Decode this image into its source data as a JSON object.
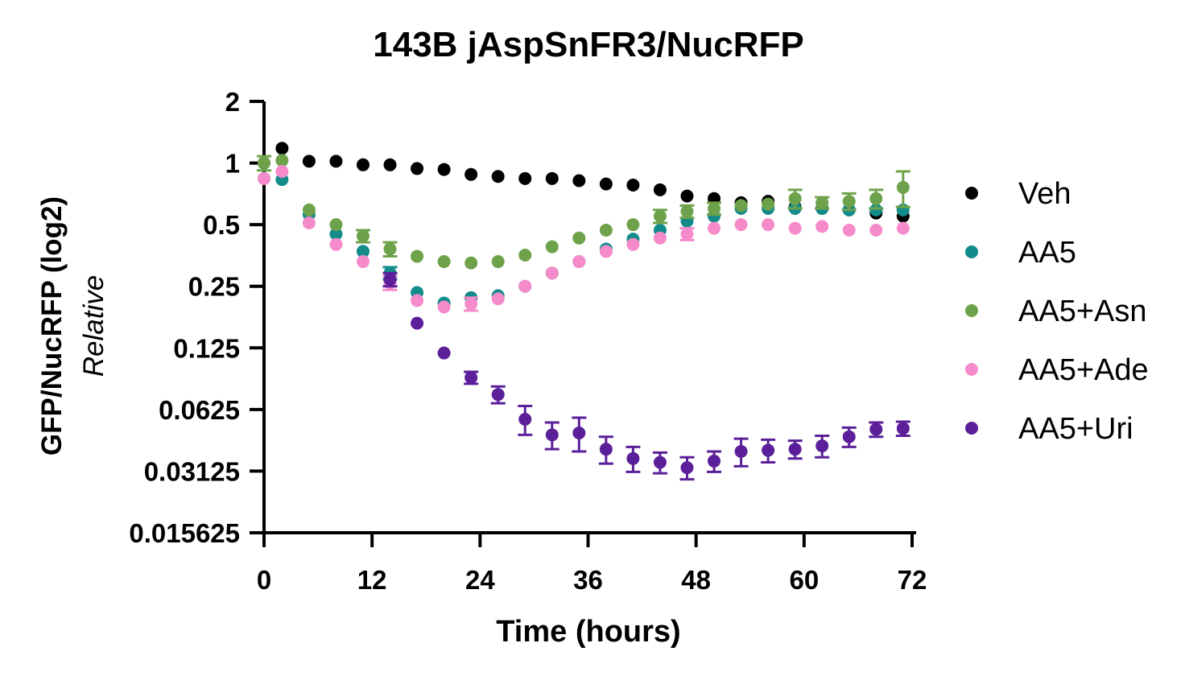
{
  "chart_data": {
    "type": "scatter",
    "title": "143B jAspSnFR3/NucRFP",
    "xlabel": "Time (hours)",
    "ylabel_main": "GFP/NucRFP (log2)",
    "ylabel_sub": "Relative",
    "yscale": "log2",
    "xlim": [
      0,
      72
    ],
    "ylim": [
      0.015625,
      2
    ],
    "x_ticks": [
      0,
      12,
      24,
      36,
      48,
      60,
      72
    ],
    "x_tick_labels": [
      "0",
      "12",
      "24",
      "36",
      "48",
      "60",
      "72"
    ],
    "y_ticks": [
      2,
      1,
      0.5,
      0.25,
      0.125,
      0.0625,
      0.03125,
      0.015625
    ],
    "y_tick_labels": [
      "2",
      "1",
      "0.5",
      "0.25",
      "0.125",
      "0.0625",
      "0.03125",
      "0.015625"
    ],
    "legend_position": "right",
    "error_bars": true,
    "series": [
      {
        "name": "Veh",
        "color": "#000000",
        "x": [
          0,
          2,
          5,
          8,
          11,
          14,
          17,
          20,
          23,
          26,
          29,
          32,
          35,
          38,
          41,
          44,
          47,
          50,
          53,
          56,
          59,
          62,
          65,
          68,
          71
        ],
        "y": [
          1.0,
          1.18,
          1.02,
          1.02,
          0.98,
          0.98,
          0.94,
          0.93,
          0.88,
          0.86,
          0.84,
          0.84,
          0.82,
          0.79,
          0.78,
          0.74,
          0.69,
          0.67,
          0.64,
          0.65,
          0.61,
          0.6,
          0.59,
          0.57,
          0.55
        ],
        "err": [
          0.03,
          0.03,
          0.02,
          0.02,
          0.02,
          0.02,
          0.02,
          0.02,
          0.02,
          0.02,
          0.02,
          0.02,
          0.02,
          0.02,
          0.02,
          0.02,
          0.02,
          0.02,
          0.02,
          0.02,
          0.02,
          0.02,
          0.02,
          0.02,
          0.02
        ]
      },
      {
        "name": "AA5",
        "color": "#138b8b",
        "x": [
          0,
          2,
          5,
          8,
          11,
          14,
          17,
          20,
          23,
          26,
          29,
          32,
          35,
          38,
          41,
          44,
          47,
          50,
          53,
          56,
          59,
          62,
          65,
          68,
          71
        ],
        "y": [
          0.84,
          0.83,
          0.56,
          0.45,
          0.37,
          0.29,
          0.233,
          0.207,
          0.22,
          0.225,
          0.25,
          0.29,
          0.33,
          0.38,
          0.425,
          0.47,
          0.52,
          0.55,
          0.6,
          0.6,
          0.6,
          0.6,
          0.59,
          0.59,
          0.59
        ],
        "err": [
          0.03,
          0.03,
          0.02,
          0.02,
          0.02,
          0.02,
          0.01,
          0.01,
          0.01,
          0.01,
          0.01,
          0.01,
          0.01,
          0.02,
          0.02,
          0.02,
          0.02,
          0.02,
          0.03,
          0.03,
          0.03,
          0.03,
          0.03,
          0.03,
          0.03
        ]
      },
      {
        "name": "AA5+Asn",
        "color": "#6ea24a",
        "x": [
          0,
          2,
          5,
          8,
          11,
          14,
          17,
          20,
          23,
          26,
          29,
          32,
          35,
          38,
          41,
          44,
          47,
          50,
          53,
          56,
          59,
          62,
          65,
          68,
          71
        ],
        "y": [
          1.0,
          1.03,
          0.59,
          0.5,
          0.44,
          0.38,
          0.35,
          0.33,
          0.325,
          0.33,
          0.355,
          0.39,
          0.43,
          0.47,
          0.5,
          0.55,
          0.58,
          0.6,
          0.62,
          0.63,
          0.67,
          0.64,
          0.65,
          0.67,
          0.76
        ],
        "err": [
          0.08,
          0.04,
          0.02,
          0.02,
          0.03,
          0.03,
          0.02,
          0.02,
          0.01,
          0.01,
          0.01,
          0.01,
          0.01,
          0.02,
          0.02,
          0.04,
          0.04,
          0.04,
          0.03,
          0.03,
          0.07,
          0.04,
          0.06,
          0.07,
          0.15
        ]
      },
      {
        "name": "AA5+Ade",
        "color": "#f58bcb",
        "x": [
          0,
          2,
          5,
          8,
          11,
          14,
          17,
          20,
          23,
          26,
          29,
          32,
          35,
          38,
          41,
          44,
          47,
          50,
          53,
          56,
          59,
          62,
          65,
          68,
          71
        ],
        "y": [
          0.84,
          0.91,
          0.51,
          0.4,
          0.33,
          0.26,
          0.213,
          0.198,
          0.205,
          0.217,
          0.25,
          0.29,
          0.33,
          0.37,
          0.4,
          0.43,
          0.45,
          0.48,
          0.5,
          0.5,
          0.48,
          0.49,
          0.47,
          0.47,
          0.48
        ],
        "err": [
          0.03,
          0.03,
          0.02,
          0.02,
          0.02,
          0.02,
          0.01,
          0.01,
          0.015,
          0.01,
          0.01,
          0.01,
          0.01,
          0.02,
          0.02,
          0.02,
          0.03,
          0.02,
          0.02,
          0.02,
          0.02,
          0.02,
          0.02,
          0.02,
          0.02
        ]
      },
      {
        "name": "AA5+Uri",
        "color": "#5a1f99",
        "x": [
          14,
          17,
          20,
          23,
          26,
          29,
          32,
          35,
          38,
          41,
          44,
          47,
          50,
          53,
          56,
          59,
          62,
          65,
          68,
          71
        ],
        "y": [
          0.27,
          0.165,
          0.118,
          0.0895,
          0.074,
          0.056,
          0.047,
          0.048,
          0.04,
          0.036,
          0.0345,
          0.0325,
          0.035,
          0.039,
          0.0395,
          0.04,
          0.0415,
          0.046,
          0.05,
          0.0505
        ],
        "err": [
          0.02,
          0.005,
          0.005,
          0.006,
          0.007,
          0.009,
          0.007,
          0.009,
          0.006,
          0.005,
          0.004,
          0.004,
          0.004,
          0.006,
          0.005,
          0.004,
          0.005,
          0.005,
          0.004,
          0.004
        ]
      }
    ]
  }
}
